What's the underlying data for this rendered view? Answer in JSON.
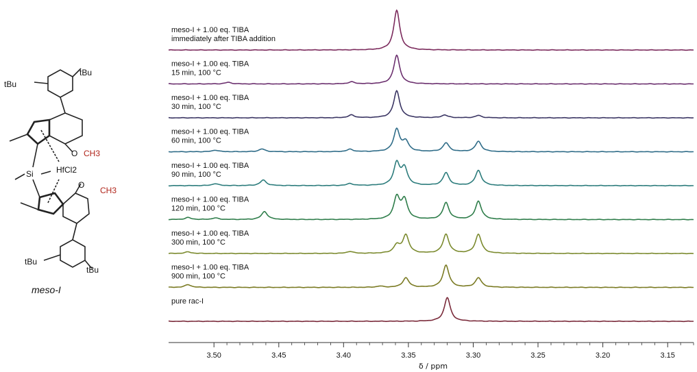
{
  "structure": {
    "tbu": "tBu",
    "methoxy": "CH3",
    "oxygen": "O",
    "metal": "HfCl2",
    "silicon": "Si",
    "name": "meso-I"
  },
  "chart_data": {
    "type": "line",
    "title": "",
    "xlabel": "δ / ppm",
    "ylabel": "",
    "xlim": [
      3.535,
      3.13
    ],
    "x_reversed": true,
    "grid": false,
    "xticks": [
      "3.50",
      "3.45",
      "3.40",
      "3.35",
      "3.30",
      "3.25",
      "3.20",
      "3.15"
    ],
    "xtick_values": [
      3.5,
      3.45,
      3.4,
      3.35,
      3.3,
      3.25,
      3.2,
      3.15
    ],
    "series": [
      {
        "line1": "meso-I + 1.00 eq. TIBA",
        "line2": "immediately after TIBA addition",
        "color": "#7b2a5c",
        "peaks": [
          [
            3.359,
            1.0
          ]
        ]
      },
      {
        "line1": "meso-I + 1.00 eq. TIBA",
        "line2": "15 min, 100 °C",
        "color": "#6b2f6e",
        "peaks": [
          [
            3.359,
            0.72
          ],
          [
            3.394,
            0.05
          ],
          [
            3.489,
            0.04
          ]
        ]
      },
      {
        "line1": "meso-I + 1.00 eq. TIBA",
        "line2": "30 min, 100 °C",
        "color": "#3a3563",
        "peaks": [
          [
            3.359,
            0.68
          ],
          [
            3.394,
            0.07
          ],
          [
            3.322,
            0.07
          ],
          [
            3.296,
            0.06
          ]
        ]
      },
      {
        "line1": "meso-I + 1.00 eq. TIBA",
        "line2": "60 min, 100 °C",
        "color": "#2f6c88",
        "peaks": [
          [
            3.359,
            0.56
          ],
          [
            3.352,
            0.24
          ],
          [
            3.321,
            0.22
          ],
          [
            3.296,
            0.26
          ],
          [
            3.463,
            0.07
          ],
          [
            3.395,
            0.06
          ],
          [
            3.499,
            0.04
          ]
        ]
      },
      {
        "line1": "meso-I + 1.00 eq. TIBA",
        "line2": "90 min, 100 °C",
        "color": "#2c7c7c",
        "peaks": [
          [
            3.359,
            0.56
          ],
          [
            3.353,
            0.42
          ],
          [
            3.321,
            0.32
          ],
          [
            3.296,
            0.38
          ],
          [
            3.462,
            0.14
          ],
          [
            3.395,
            0.05
          ],
          [
            3.499,
            0.05
          ]
        ]
      },
      {
        "line1": "meso-I + 1.00 eq. TIBA",
        "line2": "120 min, 100 °C",
        "color": "#2e7d4a",
        "peaks": [
          [
            3.359,
            0.55
          ],
          [
            3.353,
            0.48
          ],
          [
            3.321,
            0.42
          ],
          [
            3.296,
            0.46
          ],
          [
            3.461,
            0.2
          ],
          [
            3.52,
            0.05
          ],
          [
            3.499,
            0.04
          ]
        ]
      },
      {
        "line1": "meso-I + 1.00 eq. TIBA",
        "line2": "300 min, 100 °C",
        "color": "#7b8a2e",
        "peaks": [
          [
            3.359,
            0.2
          ],
          [
            3.352,
            0.46
          ],
          [
            3.321,
            0.48
          ],
          [
            3.296,
            0.48
          ],
          [
            3.395,
            0.05
          ],
          [
            3.52,
            0.04
          ]
        ]
      },
      {
        "line1": "meso-I + 1.00 eq. TIBA",
        "line2": "900 min, 100 °C",
        "color": "#7a7a22",
        "peaks": [
          [
            3.352,
            0.24
          ],
          [
            3.321,
            0.56
          ],
          [
            3.296,
            0.24
          ],
          [
            3.52,
            0.07
          ],
          [
            3.372,
            0.03
          ]
        ]
      },
      {
        "line1": "pure rac-I",
        "line2": "",
        "color": "#7a2a3a",
        "peaks": [
          [
            3.32,
            0.6
          ]
        ]
      }
    ]
  }
}
